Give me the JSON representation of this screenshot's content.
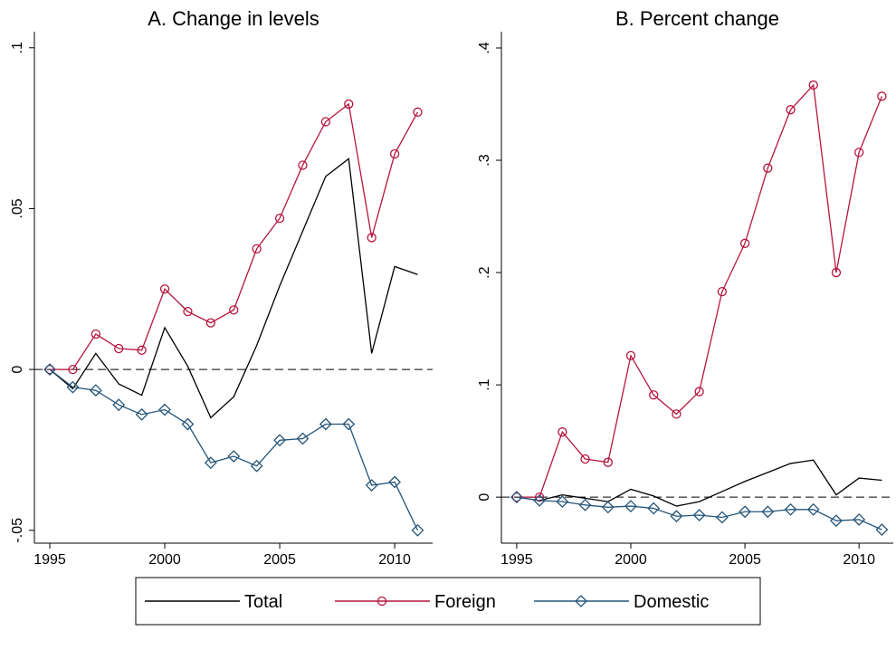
{
  "chart_data": [
    {
      "type": "line",
      "title": "A. Change in levels",
      "x": [
        1995,
        1996,
        1997,
        1998,
        1999,
        2000,
        2001,
        2002,
        2003,
        2004,
        2005,
        2006,
        2007,
        2008,
        2009,
        2010,
        2011
      ],
      "xlim": [
        1994.33,
        2011.65
      ],
      "xticks": [
        1995,
        2000,
        2005,
        2010
      ],
      "ylim": [
        -0.054,
        0.105
      ],
      "yticks": [
        {
          "value": -0.05,
          "label": "-.05"
        },
        0,
        {
          "value": 0.05,
          "label": ".05"
        },
        {
          "value": 0.1,
          "label": ".1"
        }
      ],
      "reference_line": 0,
      "series": [
        {
          "name": "Total",
          "color": "#000000",
          "marker": "none",
          "values": [
            0,
            -0.006,
            0.005,
            -0.0045,
            -0.008,
            0.013,
            0.001,
            -0.015,
            -0.0085,
            0.0075,
            0.026,
            0.043,
            0.06,
            0.0655,
            0.005,
            0.032,
            0.0295
          ]
        },
        {
          "name": "Foreign",
          "color": "#b5163e",
          "marker": "circle",
          "values": [
            0,
            0,
            0.011,
            0.0065,
            0.006,
            0.025,
            0.018,
            0.0145,
            0.0185,
            0.0375,
            0.047,
            0.0635,
            0.077,
            0.0825,
            0.041,
            0.067,
            0.08
          ]
        },
        {
          "name": "Domestic",
          "color": "#24557a",
          "marker": "diamond",
          "values": [
            0,
            -0.0055,
            -0.0065,
            -0.011,
            -0.014,
            -0.0125,
            -0.017,
            -0.029,
            -0.027,
            -0.03,
            -0.022,
            -0.0215,
            -0.017,
            -0.017,
            -0.036,
            -0.035,
            -0.05
          ]
        }
      ]
    },
    {
      "type": "line",
      "title": "B. Percent change",
      "x": [
        1995,
        1996,
        1997,
        1998,
        1999,
        2000,
        2001,
        2002,
        2003,
        2004,
        2005,
        2006,
        2007,
        2008,
        2009,
        2010,
        2011
      ],
      "xlim": [
        1994.33,
        2011.5
      ],
      "xticks": [
        1995,
        2000,
        2005,
        2010
      ],
      "ylim": [
        -0.041,
        0.4145
      ],
      "yticks": [
        0,
        {
          "value": 0.1,
          "label": ".1"
        },
        {
          "value": 0.2,
          "label": ".2"
        },
        {
          "value": 0.3,
          "label": ".3"
        },
        {
          "value": 0.4,
          "label": ".4"
        }
      ],
      "reference_line": 0,
      "series": [
        {
          "name": "Total",
          "color": "#000000",
          "marker": "none",
          "values": [
            0,
            -0.003,
            0.002,
            -0.001,
            -0.004,
            0.007,
            0.001,
            -0.008,
            -0.004,
            0.005,
            0.014,
            0.022,
            0.03,
            0.033,
            0.002,
            0.017,
            0.015
          ]
        },
        {
          "name": "Foreign",
          "color": "#b5163e",
          "marker": "circle",
          "values": [
            0,
            0,
            0.058,
            0.034,
            0.031,
            0.126,
            0.091,
            0.074,
            0.094,
            0.183,
            0.226,
            0.293,
            0.345,
            0.367,
            0.2,
            0.307,
            0.357
          ]
        },
        {
          "name": "Domestic",
          "color": "#24557a",
          "marker": "diamond",
          "values": [
            0,
            -0.003,
            -0.004,
            -0.007,
            -0.009,
            -0.008,
            -0.01,
            -0.017,
            -0.016,
            -0.018,
            -0.013,
            -0.013,
            -0.011,
            -0.011,
            -0.021,
            -0.02,
            -0.029
          ]
        }
      ]
    }
  ]
}
